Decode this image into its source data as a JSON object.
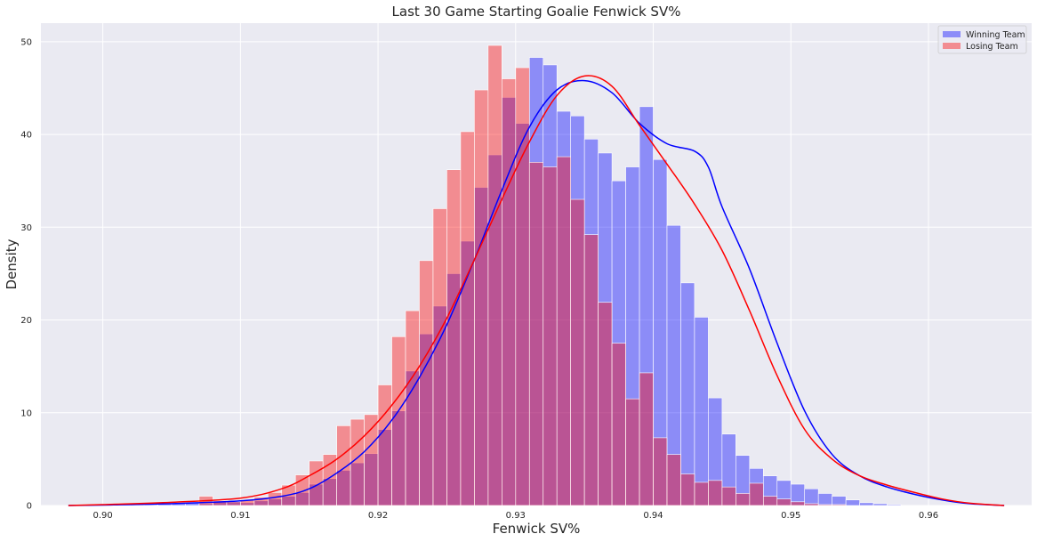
{
  "chart_data": {
    "type": "histogram",
    "title": "Last 30 Game Starting Goalie Fenwick SV%",
    "xlabel": "Fenwick SV%",
    "ylabel": "Density",
    "xlim": [
      0.8955,
      0.9675
    ],
    "ylim": [
      0,
      52
    ],
    "x_ticks": [
      0.9,
      0.91,
      0.92,
      0.93,
      0.94,
      0.95,
      0.96
    ],
    "x_tick_labels": [
      "0.90",
      "0.91",
      "0.92",
      "0.93",
      "0.94",
      "0.95",
      "0.96"
    ],
    "y_ticks": [
      0,
      10,
      20,
      30,
      40,
      50
    ],
    "y_tick_labels": [
      "0",
      "10",
      "20",
      "30",
      "40",
      "50"
    ],
    "grid": true,
    "legend_position": "top-right",
    "series": [
      {
        "name": "Winning Team",
        "color": "#0000ff",
        "bar_alpha": 0.4,
        "bin_edges": [
          0.901,
          0.902,
          0.903,
          0.904,
          0.905,
          0.906,
          0.907,
          0.908,
          0.909,
          0.91,
          0.911,
          0.912,
          0.913,
          0.914,
          0.915,
          0.916,
          0.917,
          0.918,
          0.919,
          0.92,
          0.921,
          0.922,
          0.923,
          0.924,
          0.925,
          0.926,
          0.927,
          0.928,
          0.929,
          0.93,
          0.931,
          0.932,
          0.933,
          0.934,
          0.935,
          0.936,
          0.937,
          0.938,
          0.939,
          0.94,
          0.941,
          0.942,
          0.943,
          0.944,
          0.945,
          0.946,
          0.947,
          0.948,
          0.949,
          0.95,
          0.951,
          0.952,
          0.953,
          0.954,
          0.955,
          0.956,
          0.957,
          0.958,
          0.959,
          0.96,
          0.961
        ],
        "densities": [
          0.0,
          0.1,
          0.1,
          0.2,
          0.2,
          0.3,
          0.2,
          0.4,
          0.5,
          0.3,
          0.5,
          0.7,
          1.0,
          1.4,
          2.3,
          2.9,
          3.8,
          4.6,
          5.6,
          8.2,
          10.2,
          14.5,
          18.5,
          21.5,
          25.0,
          28.5,
          34.3,
          37.8,
          44.0,
          41.2,
          48.3,
          47.5,
          42.5,
          42.0,
          39.5,
          38.0,
          35.0,
          36.5,
          43.0,
          37.3,
          30.2,
          24.0,
          20.3,
          11.6,
          7.7,
          5.4,
          4.0,
          3.2,
          2.7,
          2.3,
          1.8,
          1.3,
          1.0,
          0.6,
          0.3,
          0.2,
          0.1,
          0.0,
          0.0,
          0.0
        ],
        "kde_x": [
          0.8975,
          0.9,
          0.905,
          0.91,
          0.913,
          0.915,
          0.917,
          0.919,
          0.921,
          0.923,
          0.925,
          0.927,
          0.929,
          0.931,
          0.933,
          0.935,
          0.937,
          0.939,
          0.941,
          0.943,
          0.944,
          0.945,
          0.947,
          0.949,
          0.951,
          0.953,
          0.955,
          0.957,
          0.959,
          0.961,
          0.963,
          0.9655
        ],
        "kde_y": [
          0.0,
          0.05,
          0.2,
          0.5,
          1.0,
          1.8,
          3.5,
          5.8,
          9.2,
          13.8,
          19.5,
          26.5,
          34.0,
          40.8,
          44.8,
          45.8,
          44.5,
          41.2,
          39.0,
          38.2,
          36.5,
          32.2,
          25.5,
          17.5,
          10.2,
          5.5,
          3.2,
          2.0,
          1.2,
          0.6,
          0.2,
          0.0
        ]
      },
      {
        "name": "Losing Team",
        "color": "#ff0000",
        "bar_alpha": 0.4,
        "bin_edges": [
          0.907,
          0.908,
          0.909,
          0.91,
          0.911,
          0.912,
          0.913,
          0.914,
          0.915,
          0.916,
          0.917,
          0.918,
          0.919,
          0.92,
          0.921,
          0.922,
          0.923,
          0.924,
          0.925,
          0.926,
          0.927,
          0.928,
          0.929,
          0.93,
          0.931,
          0.932,
          0.933,
          0.934,
          0.935,
          0.936,
          0.937,
          0.938,
          0.939,
          0.94,
          0.941,
          0.942,
          0.943,
          0.944,
          0.945,
          0.946,
          0.947,
          0.948,
          0.949,
          0.95,
          0.951,
          0.952,
          0.953,
          0.954,
          0.955,
          0.956,
          0.957,
          0.958,
          0.959
        ],
        "densities": [
          1.0,
          0.5,
          0.4,
          0.6,
          0.9,
          1.4,
          2.2,
          3.3,
          4.8,
          5.5,
          8.6,
          9.3,
          9.8,
          13.0,
          18.2,
          21.0,
          26.4,
          32.0,
          36.2,
          40.3,
          44.8,
          49.6,
          46.0,
          47.2,
          37.0,
          36.5,
          37.6,
          33.0,
          29.2,
          21.9,
          17.5,
          11.5,
          14.3,
          7.3,
          5.5,
          3.4,
          2.5,
          2.7,
          2.0,
          1.3,
          2.4,
          1.0,
          0.7,
          0.4,
          0.2,
          0.1,
          0.1,
          0.0,
          0.0,
          0.0,
          0.0,
          0.0
        ],
        "kde_x": [
          0.8975,
          0.9,
          0.905,
          0.91,
          0.913,
          0.915,
          0.917,
          0.919,
          0.921,
          0.923,
          0.925,
          0.927,
          0.929,
          0.931,
          0.933,
          0.935,
          0.937,
          0.939,
          0.941,
          0.943,
          0.945,
          0.947,
          0.949,
          0.951,
          0.953,
          0.955,
          0.957,
          0.959,
          0.961,
          0.963,
          0.9655
        ],
        "kde_y": [
          0.0,
          0.1,
          0.35,
          0.8,
          1.8,
          3.2,
          5.0,
          7.5,
          10.8,
          15.0,
          20.2,
          26.5,
          33.0,
          39.2,
          44.2,
          46.3,
          45.2,
          41.0,
          36.8,
          32.5,
          27.5,
          21.0,
          14.0,
          8.2,
          5.0,
          3.2,
          2.2,
          1.4,
          0.7,
          0.25,
          0.0
        ]
      }
    ]
  }
}
